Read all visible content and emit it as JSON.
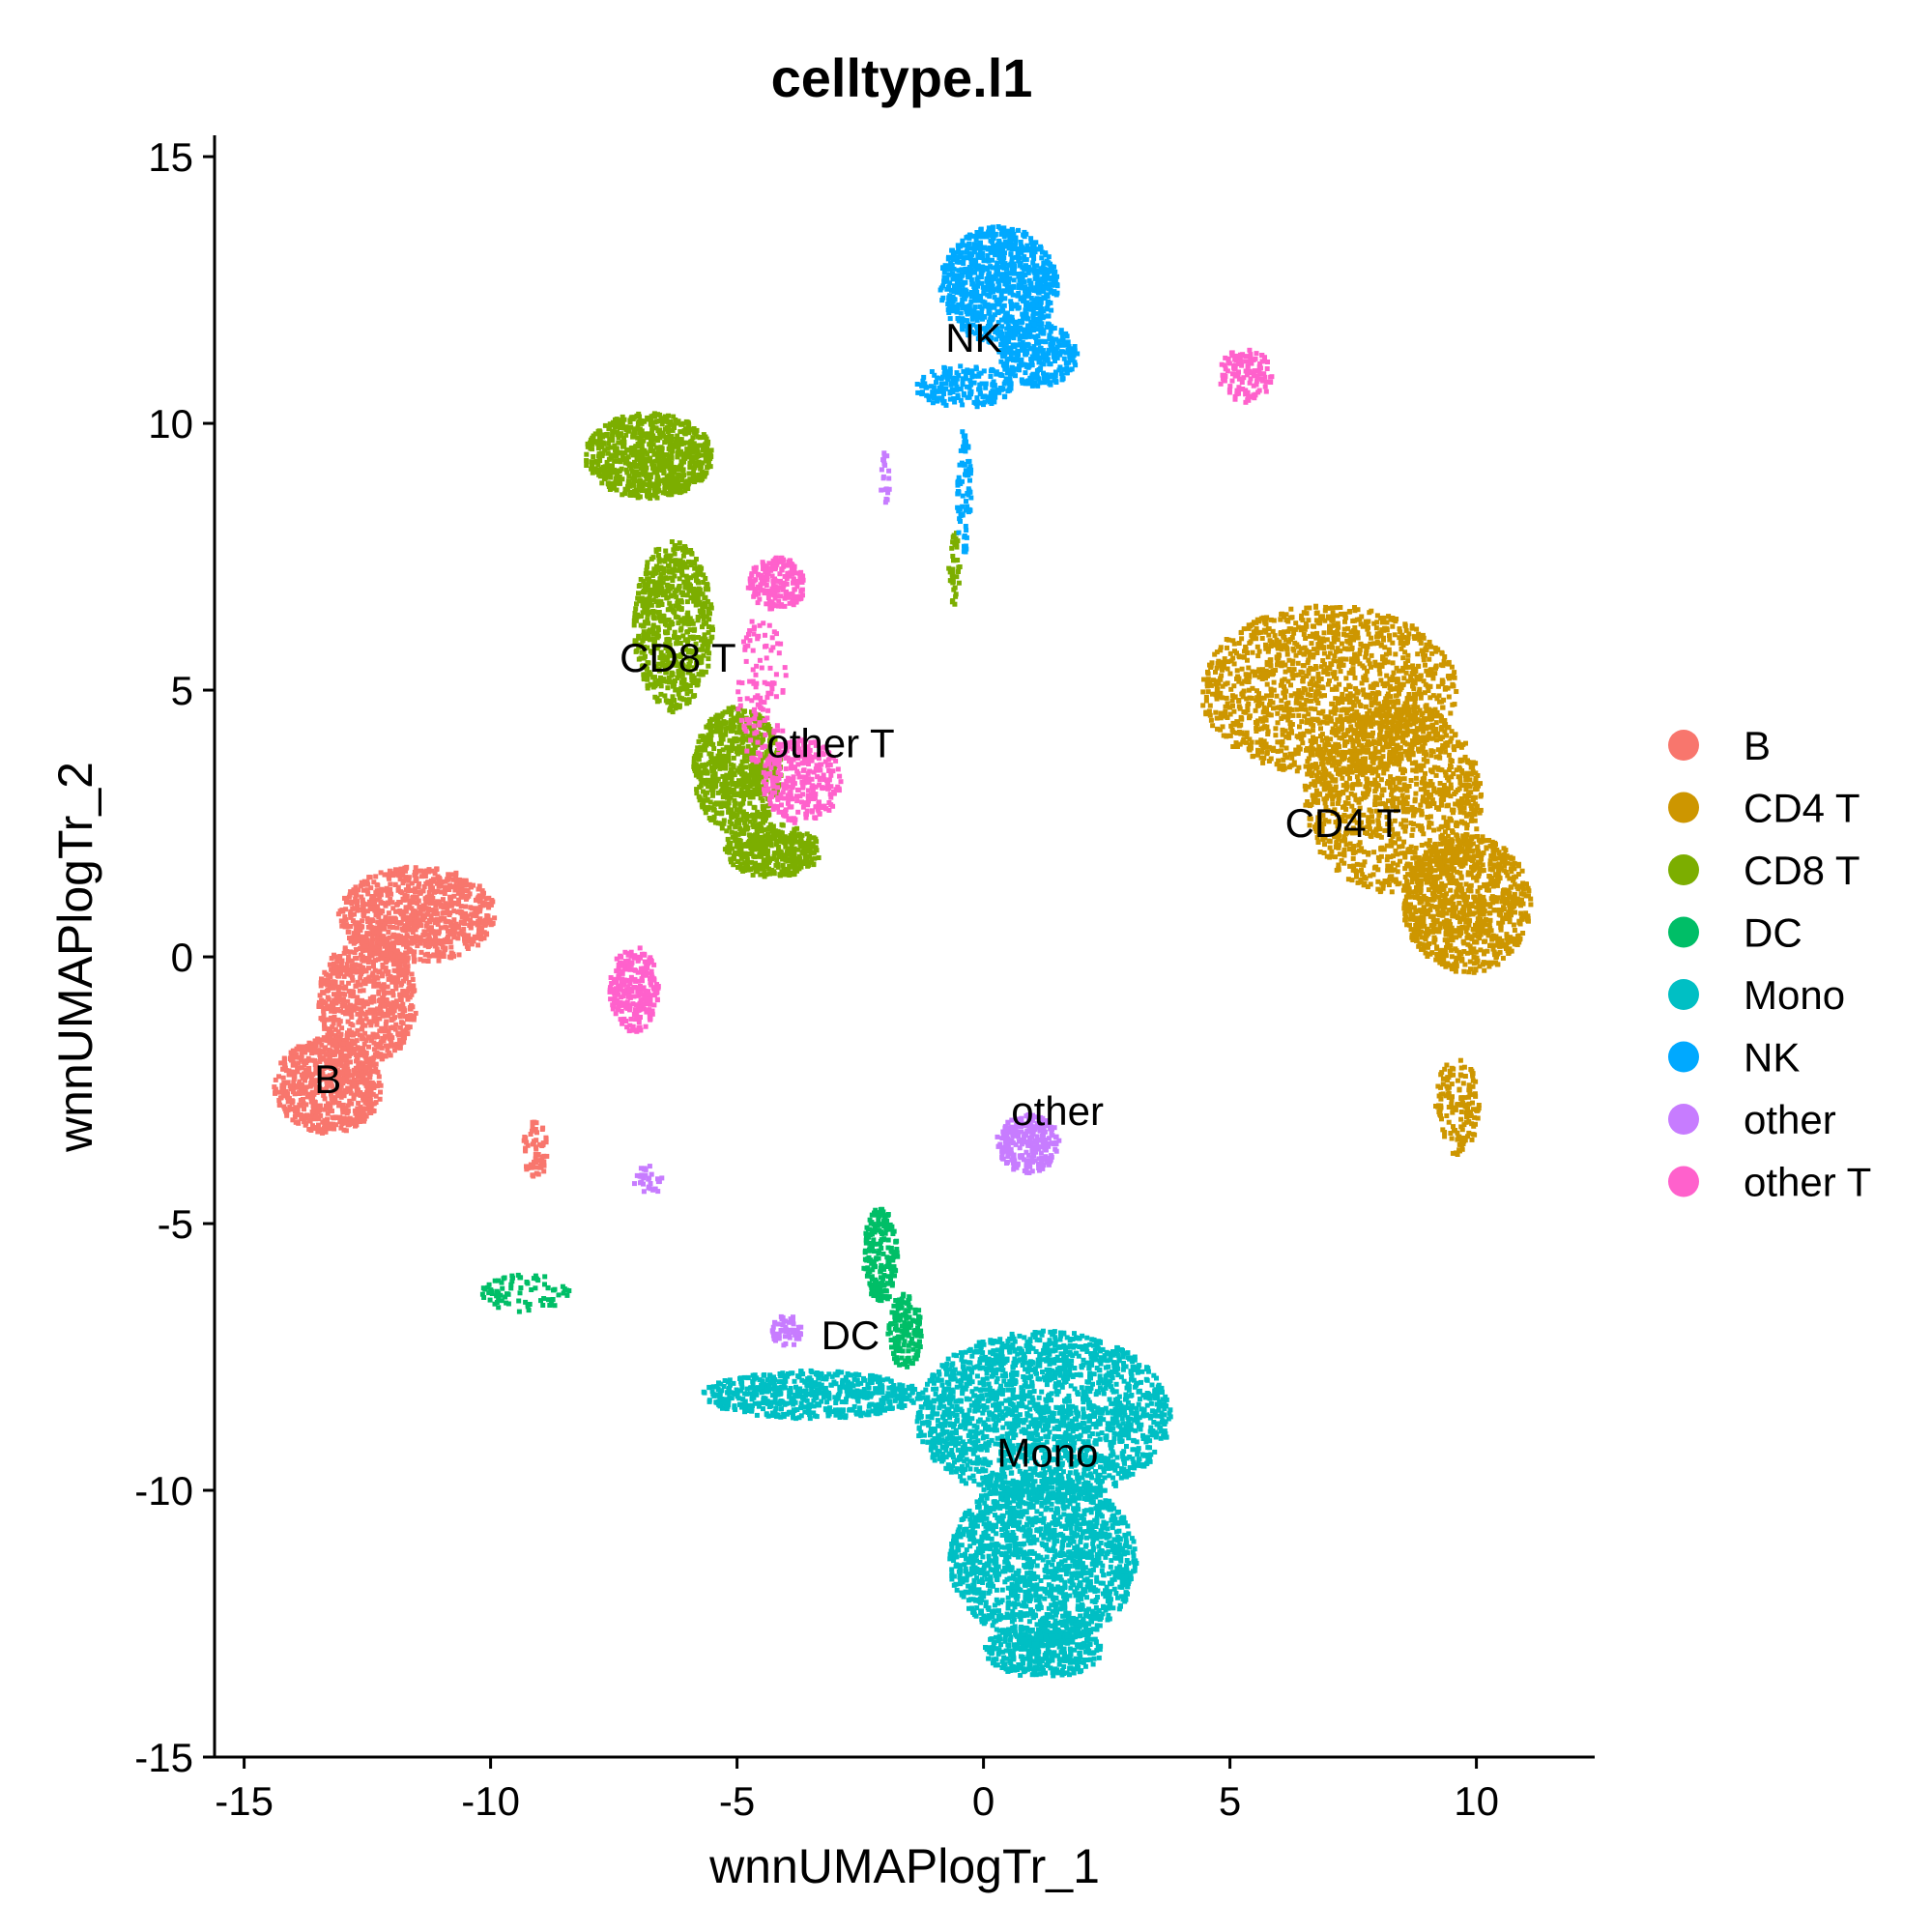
{
  "chart_data": {
    "type": "scatter",
    "title": "celltype.l1",
    "xlabel": "wnnUMAPlogTr_1",
    "ylabel": "wnnUMAPlogTr_2",
    "xlim": [
      -15.6,
      12.4
    ],
    "ylim": [
      -15,
      15.4
    ],
    "xticks": [
      -15,
      -10,
      -5,
      0,
      5,
      10
    ],
    "yticks": [
      -15,
      -10,
      -5,
      0,
      5,
      10,
      15
    ],
    "xtick_labels": [
      "-15",
      "-10",
      "-5",
      "0",
      "5",
      "10"
    ],
    "ytick_labels": [
      "-15",
      "-10",
      "-5",
      "0",
      "5",
      "10",
      "15"
    ],
    "grid": false,
    "legend_position": "right",
    "series": [
      {
        "name": "B",
        "color": "#F8766D",
        "regions": [
          {
            "cx": -11.5,
            "cy": 0.8,
            "rx": 1.6,
            "ry": 0.9,
            "n": 900
          },
          {
            "cx": -12.5,
            "cy": -0.8,
            "rx": 1.0,
            "ry": 1.2,
            "n": 700
          },
          {
            "cx": -13.3,
            "cy": -2.4,
            "rx": 1.1,
            "ry": 0.9,
            "n": 700
          },
          {
            "cx": -9.1,
            "cy": -3.6,
            "rx": 0.25,
            "ry": 0.6,
            "n": 60
          }
        ],
        "labels": [
          {
            "text": "B",
            "x": -13.3,
            "y": -2.3
          }
        ]
      },
      {
        "name": "CD4 T",
        "color": "#CD9600",
        "regions": [
          {
            "cx": 7.0,
            "cy": 5.0,
            "rx": 2.6,
            "ry": 1.6,
            "n": 1500
          },
          {
            "cx": 8.3,
            "cy": 3.0,
            "rx": 1.8,
            "ry": 1.8,
            "n": 1200
          },
          {
            "cx": 9.8,
            "cy": 1.0,
            "rx": 1.3,
            "ry": 1.3,
            "n": 1000
          },
          {
            "cx": 9.6,
            "cy": -2.8,
            "rx": 0.45,
            "ry": 0.9,
            "n": 150
          }
        ],
        "labels": [
          {
            "text": "CD4 T",
            "x": 7.3,
            "y": 2.5
          }
        ]
      },
      {
        "name": "CD8 T",
        "color": "#7CAE00",
        "regions": [
          {
            "cx": -6.8,
            "cy": 9.4,
            "rx": 1.3,
            "ry": 0.8,
            "n": 800
          },
          {
            "cx": -6.3,
            "cy": 6.2,
            "rx": 0.8,
            "ry": 1.6,
            "n": 700
          },
          {
            "cx": -5.0,
            "cy": 3.5,
            "rx": 0.9,
            "ry": 1.2,
            "n": 700
          },
          {
            "cx": -4.3,
            "cy": 2.0,
            "rx": 1.0,
            "ry": 0.5,
            "n": 400
          },
          {
            "cx": -0.6,
            "cy": 7.3,
            "rx": 0.12,
            "ry": 0.7,
            "n": 40
          }
        ],
        "labels": [
          {
            "text": "CD8 T",
            "x": -6.2,
            "y": 5.6
          }
        ]
      },
      {
        "name": "DC",
        "color": "#00BE67",
        "regions": [
          {
            "cx": -2.1,
            "cy": -5.6,
            "rx": 0.35,
            "ry": 0.9,
            "n": 200
          },
          {
            "cx": -1.6,
            "cy": -7.0,
            "rx": 0.35,
            "ry": 0.7,
            "n": 150
          },
          {
            "cx": -9.3,
            "cy": -6.3,
            "rx": 0.9,
            "ry": 0.35,
            "n": 80
          }
        ],
        "labels": [
          {
            "text": "DC",
            "x": -2.7,
            "y": -7.1
          }
        ]
      },
      {
        "name": "Mono",
        "color": "#00BFC4",
        "regions": [
          {
            "cx": -3.5,
            "cy": -8.2,
            "rx": 2.2,
            "ry": 0.45,
            "n": 600
          },
          {
            "cx": 1.2,
            "cy": -8.6,
            "rx": 2.6,
            "ry": 1.6,
            "n": 2000
          },
          {
            "cx": 1.2,
            "cy": -11.3,
            "rx": 1.9,
            "ry": 1.6,
            "n": 1600
          },
          {
            "cx": 1.2,
            "cy": -13.0,
            "rx": 1.2,
            "ry": 0.5,
            "n": 400
          }
        ],
        "labels": [
          {
            "text": "Mono",
            "x": 1.3,
            "y": -9.3
          }
        ]
      },
      {
        "name": "NK",
        "color": "#00A9FF",
        "regions": [
          {
            "cx": 0.3,
            "cy": 12.6,
            "rx": 1.2,
            "ry": 1.1,
            "n": 900
          },
          {
            "cx": 1.1,
            "cy": 11.3,
            "rx": 0.8,
            "ry": 0.6,
            "n": 300
          },
          {
            "cx": -0.4,
            "cy": 10.7,
            "rx": 1.0,
            "ry": 0.4,
            "n": 200
          },
          {
            "cx": -0.4,
            "cy": 8.7,
            "rx": 0.15,
            "ry": 1.2,
            "n": 80
          }
        ],
        "labels": [
          {
            "text": "NK",
            "x": -0.2,
            "y": 11.6
          }
        ]
      },
      {
        "name": "other",
        "color": "#C77CFF",
        "regions": [
          {
            "cx": 0.9,
            "cy": -3.5,
            "rx": 0.65,
            "ry": 0.55,
            "n": 250
          },
          {
            "cx": -4.0,
            "cy": -7.0,
            "rx": 0.3,
            "ry": 0.3,
            "n": 60
          },
          {
            "cx": -6.8,
            "cy": -4.2,
            "rx": 0.3,
            "ry": 0.3,
            "n": 30
          },
          {
            "cx": -2.0,
            "cy": 9.0,
            "rx": 0.1,
            "ry": 0.5,
            "n": 20
          }
        ],
        "labels": [
          {
            "text": "other",
            "x": 1.5,
            "y": -2.9
          }
        ]
      },
      {
        "name": "other T",
        "color": "#FF61CC",
        "regions": [
          {
            "cx": -3.7,
            "cy": 3.3,
            "rx": 0.8,
            "ry": 0.8,
            "n": 300
          },
          {
            "cx": -4.2,
            "cy": 7.0,
            "rx": 0.6,
            "ry": 0.5,
            "n": 200
          },
          {
            "cx": -4.5,
            "cy": 5.0,
            "rx": 0.5,
            "ry": 1.5,
            "n": 120
          },
          {
            "cx": -7.1,
            "cy": -0.6,
            "rx": 0.5,
            "ry": 0.8,
            "n": 250
          },
          {
            "cx": 5.3,
            "cy": 10.9,
            "rx": 0.55,
            "ry": 0.5,
            "n": 120
          }
        ],
        "labels": [
          {
            "text": "other T",
            "x": -3.1,
            "y": 4.0
          }
        ]
      }
    ]
  }
}
